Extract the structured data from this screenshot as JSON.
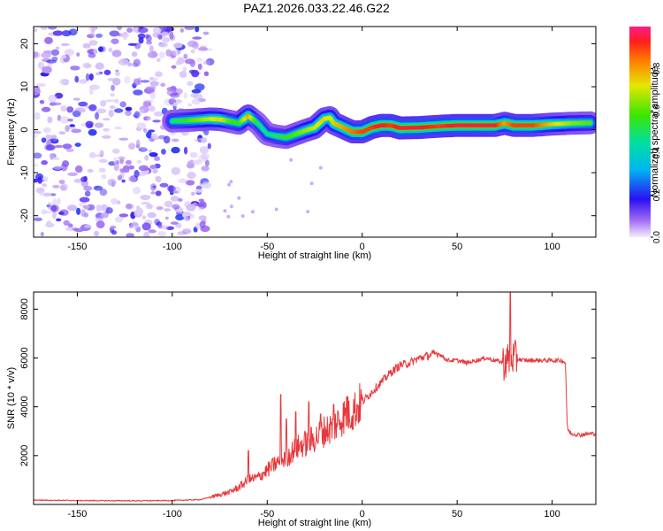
{
  "title": "PAZ1.2026.033.22.46.G22",
  "chart_data": [
    {
      "type": "heatmap",
      "name": "spectrogram",
      "xlabel": "Height of straight line (km)",
      "ylabel": "Frequency (Hz)",
      "xlim": [
        -173,
        123
      ],
      "ylim": [
        -25,
        24
      ],
      "xticks": [
        -150,
        -100,
        -50,
        0,
        50,
        100
      ],
      "yticks": [
        -20,
        -10,
        0,
        10,
        20
      ],
      "noise_region_x": [
        -173,
        -80
      ],
      "ridge": {
        "x": [
          -100,
          -90,
          -80,
          -75,
          -70,
          -65,
          -60,
          -55,
          -50,
          -45,
          -40,
          -35,
          -30,
          -25,
          -20,
          -17,
          -15,
          -10,
          -5,
          0,
          5,
          10,
          15,
          20,
          30,
          40,
          50,
          60,
          70,
          75,
          80,
          90,
          100,
          110,
          120
        ],
        "freq": [
          2,
          2.2,
          2.5,
          2.4,
          2,
          1.5,
          3.2,
          1.5,
          -1,
          -1.5,
          -1.8,
          -1,
          -0.2,
          0.5,
          2.5,
          2.8,
          1.5,
          0.5,
          -0.5,
          -0.5,
          0.5,
          1,
          1,
          0.4,
          0.5,
          0.8,
          1,
          1,
          1,
          1.5,
          1,
          1,
          1.3,
          1.5,
          1.6
        ],
        "amplitude": [
          0.5,
          0.6,
          0.7,
          0.75,
          0.6,
          0.55,
          0.8,
          0.5,
          0.45,
          0.5,
          0.55,
          0.6,
          0.65,
          0.7,
          0.75,
          0.7,
          0.75,
          0.8,
          0.85,
          0.9,
          0.9,
          0.95,
          0.9,
          0.95,
          0.95,
          0.9,
          0.95,
          0.95,
          0.95,
          0.8,
          0.9,
          0.9,
          0.75,
          0.65,
          0.6
        ]
      },
      "colorbar": {
        "label": "Normalized spectral amplitude",
        "ticks": [
          0.0,
          0.2,
          0.4,
          0.6,
          0.8
        ],
        "tick_labels": [
          "0.0",
          "0.2",
          "0.4",
          "0.6",
          "0.8"
        ],
        "range": [
          0,
          1
        ]
      }
    },
    {
      "type": "line",
      "name": "snr",
      "xlabel": "Height of straight line (km)",
      "ylabel": "SNR (10 * v/v)",
      "xlim": [
        -173,
        123
      ],
      "ylim": [
        0,
        8700
      ],
      "xticks": [
        -150,
        -100,
        -50,
        0,
        50,
        100
      ],
      "yticks": [
        2000,
        4000,
        6000,
        8000
      ],
      "color": "#e8373a",
      "series": [
        {
          "name": "SNR",
          "x": [
            -173,
            -150,
            -120,
            -100,
            -85,
            -75,
            -70,
            -65,
            -60,
            -55,
            -50,
            -45,
            -40,
            -35,
            -30,
            -25,
            -20,
            -15,
            -10,
            -5,
            0,
            5,
            10,
            15,
            20,
            25,
            30,
            35,
            40,
            45,
            50,
            55,
            60,
            65,
            70,
            75,
            78,
            80,
            85,
            90,
            95,
            100,
            105,
            107,
            108,
            110,
            115,
            120,
            123
          ],
          "y": [
            180,
            160,
            150,
            160,
            200,
            400,
            500,
            700,
            1000,
            1100,
            1400,
            1700,
            1900,
            2300,
            2500,
            2700,
            3000,
            3200,
            3600,
            3800,
            4200,
            4600,
            5000,
            5400,
            5700,
            5800,
            6000,
            6100,
            6200,
            5900,
            5900,
            5800,
            5900,
            6000,
            5900,
            5800,
            6000,
            6000,
            5900,
            5900,
            5900,
            5900,
            5900,
            5800,
            3100,
            2900,
            2850,
            2900,
            2900
          ]
        }
      ],
      "spikes": [
        {
          "x": -60,
          "y": 2200
        },
        {
          "x": -43,
          "y": 4500
        },
        {
          "x": -40,
          "y": 3500
        },
        {
          "x": -35,
          "y": 3800
        },
        {
          "x": -28,
          "y": 4200
        },
        {
          "x": -22,
          "y": 3700
        },
        {
          "x": -15,
          "y": 4100
        },
        {
          "x": -8,
          "y": 4400
        },
        {
          "x": 78,
          "y": 8700
        }
      ]
    }
  ]
}
